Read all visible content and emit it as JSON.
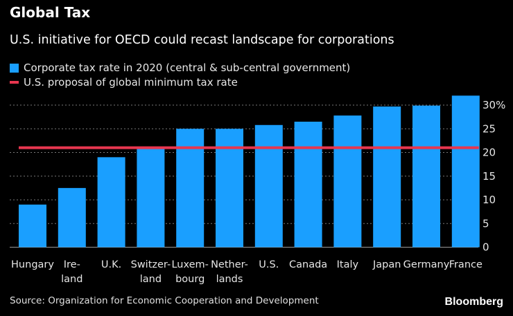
{
  "title": "Global Tax",
  "subtitle": "U.S. initiative for OECD could recast landscape for corporations",
  "legend": [
    {
      "label": "Corporate tax rate in 2020 (central & sub-central government)",
      "color": "#1a9fff"
    },
    {
      "label": "U.S. proposal of global minimum tax rate",
      "color": "#e8364f"
    }
  ],
  "source": "Source: Organization for Economic Cooperation and Development",
  "brand": "Bloomberg",
  "chart_data": {
    "type": "bar",
    "categories": [
      [
        "Hungary"
      ],
      [
        "Ire-",
        "land"
      ],
      [
        "U.K."
      ],
      [
        "Switzer-",
        "land"
      ],
      [
        "Luxem-",
        "bourg"
      ],
      [
        "Nether-",
        "lands"
      ],
      [
        "U.S."
      ],
      [
        "Canada"
      ],
      [
        "Italy"
      ],
      [
        "Japan"
      ],
      [
        "Germany"
      ],
      [
        "France"
      ]
    ],
    "values": [
      9,
      12.5,
      19,
      21,
      25,
      25,
      25.8,
      26.5,
      27.8,
      29.7,
      29.9,
      32
    ],
    "reference_line": 21,
    "ylim": [
      0,
      30
    ],
    "yticks": [
      {
        "value": 0,
        "label": "0"
      },
      {
        "value": 5,
        "label": "5"
      },
      {
        "value": 10,
        "label": "10"
      },
      {
        "value": 15,
        "label": "15"
      },
      {
        "value": 20,
        "label": "20"
      },
      {
        "value": 25,
        "label": "25"
      },
      {
        "value": 30,
        "label": "30%"
      }
    ],
    "grid": true,
    "y_axis_side": "right",
    "bar_color": "#1a9fff",
    "line_color": "#e8364f"
  }
}
